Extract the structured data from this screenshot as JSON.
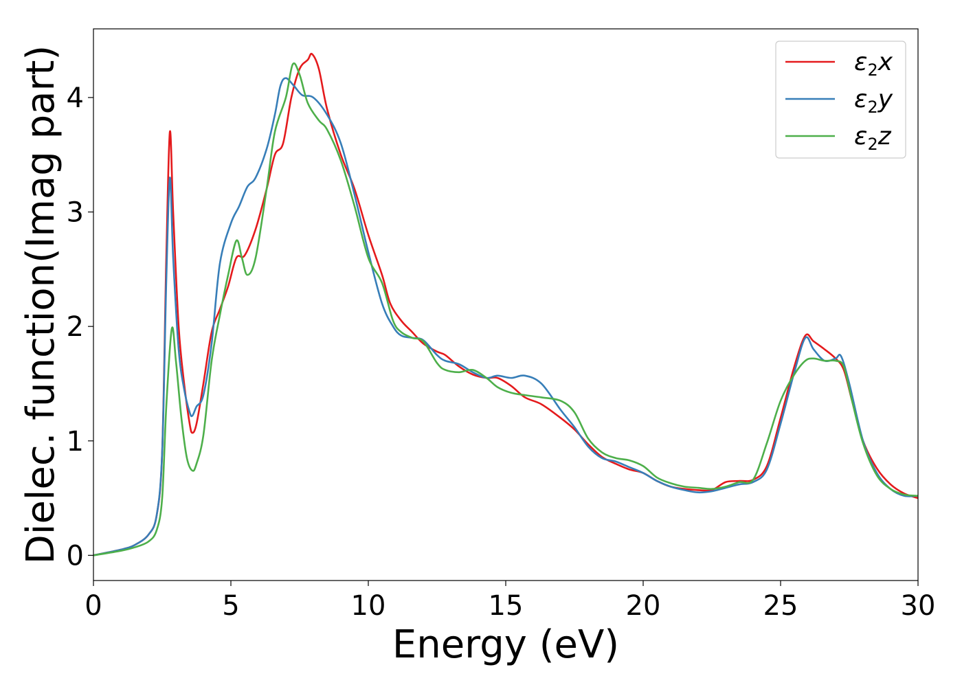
{
  "chart_data": {
    "type": "line",
    "title": "",
    "xlabel": "Energy (eV)",
    "ylabel": "Dielec. function(Imag part)",
    "xlim": [
      0,
      30
    ],
    "ylim": [
      -0.22,
      4.6
    ],
    "xticks": [
      0,
      5,
      10,
      15,
      20,
      25,
      30
    ],
    "yticks": [
      0,
      1,
      2,
      3,
      4
    ],
    "grid": false,
    "legend_position": "top-right",
    "series": [
      {
        "name": "ε2x",
        "legend_base": "ε",
        "legend_sub": "2",
        "legend_tail": "x",
        "color": "#e41a1c",
        "x": [
          0,
          1,
          1.5,
          2,
          2.3,
          2.5,
          2.65,
          2.78,
          2.9,
          3.1,
          3.3,
          3.5,
          3.6,
          3.75,
          4.0,
          4.3,
          4.6,
          4.9,
          5.2,
          5.5,
          5.9,
          6.3,
          6.6,
          6.9,
          7.2,
          7.5,
          7.8,
          7.95,
          8.2,
          8.5,
          9.0,
          9.5,
          10.0,
          10.5,
          10.8,
          11.2,
          11.6,
          12.0,
          12.5,
          12.8,
          13.3,
          13.8,
          14.3,
          14.7,
          15.2,
          15.7,
          16.3,
          17.0,
          17.5,
          18.0,
          18.5,
          19.0,
          19.5,
          20.0,
          20.5,
          21.0,
          21.5,
          22.0,
          22.5,
          23.0,
          23.5,
          24.0,
          24.5,
          25.0,
          25.5,
          25.9,
          26.2,
          26.6,
          27.0,
          27.3,
          27.6,
          28.0,
          28.5,
          29.0,
          29.5,
          30.0
        ],
        "y": [
          0,
          0.05,
          0.09,
          0.18,
          0.35,
          0.9,
          2.6,
          3.7,
          3.0,
          2.0,
          1.5,
          1.15,
          1.07,
          1.15,
          1.5,
          1.95,
          2.15,
          2.35,
          2.6,
          2.62,
          2.85,
          3.2,
          3.5,
          3.6,
          4.0,
          4.25,
          4.33,
          4.38,
          4.25,
          3.9,
          3.5,
          3.2,
          2.8,
          2.45,
          2.2,
          2.05,
          1.95,
          1.85,
          1.78,
          1.75,
          1.65,
          1.58,
          1.55,
          1.55,
          1.48,
          1.38,
          1.32,
          1.2,
          1.1,
          0.97,
          0.86,
          0.8,
          0.75,
          0.72,
          0.65,
          0.6,
          0.58,
          0.57,
          0.57,
          0.64,
          0.65,
          0.66,
          0.78,
          1.2,
          1.65,
          1.92,
          1.87,
          1.8,
          1.72,
          1.62,
          1.35,
          1.0,
          0.76,
          0.62,
          0.54,
          0.5
        ]
      },
      {
        "name": "ε2y",
        "legend_base": "ε",
        "legend_sub": "2",
        "legend_tail": "y",
        "color": "#377eb8",
        "x": [
          0,
          1,
          1.5,
          2,
          2.3,
          2.5,
          2.65,
          2.78,
          2.9,
          3.1,
          3.3,
          3.5,
          3.6,
          3.75,
          4.0,
          4.3,
          4.6,
          5.0,
          5.3,
          5.6,
          5.9,
          6.3,
          6.6,
          6.8,
          7.0,
          7.3,
          7.6,
          8.0,
          8.5,
          9.0,
          9.5,
          10.0,
          10.5,
          10.9,
          11.2,
          11.6,
          12.0,
          12.5,
          12.8,
          13.3,
          13.8,
          14.3,
          14.7,
          15.2,
          15.7,
          16.3,
          17.0,
          17.5,
          18.0,
          18.5,
          19.0,
          19.5,
          20.0,
          20.5,
          21.0,
          21.5,
          22.0,
          22.5,
          23.0,
          23.5,
          24.0,
          24.5,
          25.0,
          25.5,
          25.9,
          26.2,
          26.6,
          27.0,
          27.2,
          27.5,
          28.0,
          28.5,
          29.0,
          29.5,
          30.0
        ],
        "y": [
          0,
          0.05,
          0.09,
          0.18,
          0.35,
          0.9,
          2.4,
          3.3,
          2.6,
          1.8,
          1.45,
          1.25,
          1.22,
          1.3,
          1.4,
          1.85,
          2.55,
          2.9,
          3.05,
          3.22,
          3.3,
          3.55,
          3.85,
          4.1,
          4.17,
          4.1,
          4.02,
          4.0,
          3.85,
          3.6,
          3.15,
          2.65,
          2.2,
          2.0,
          1.92,
          1.9,
          1.88,
          1.75,
          1.7,
          1.67,
          1.6,
          1.55,
          1.57,
          1.55,
          1.57,
          1.5,
          1.27,
          1.12,
          0.95,
          0.85,
          0.82,
          0.77,
          0.72,
          0.65,
          0.6,
          0.57,
          0.55,
          0.56,
          0.59,
          0.62,
          0.64,
          0.75,
          1.15,
          1.6,
          1.9,
          1.8,
          1.7,
          1.72,
          1.74,
          1.5,
          1.0,
          0.72,
          0.58,
          0.52,
          0.52
        ]
      },
      {
        "name": "ε2z",
        "legend_base": "ε",
        "legend_sub": "2",
        "legend_tail": "z",
        "color": "#4daf4a",
        "x": [
          0,
          1,
          1.5,
          2,
          2.3,
          2.5,
          2.65,
          2.85,
          3.0,
          3.2,
          3.4,
          3.6,
          3.75,
          4.0,
          4.3,
          4.6,
          4.9,
          5.2,
          5.4,
          5.6,
          5.9,
          6.3,
          6.6,
          7.0,
          7.25,
          7.5,
          7.8,
          8.2,
          8.5,
          9.0,
          9.5,
          10.0,
          10.5,
          10.9,
          11.2,
          11.6,
          12.0,
          12.5,
          12.8,
          13.3,
          13.8,
          14.3,
          14.7,
          15.2,
          15.7,
          16.3,
          17.0,
          17.5,
          18.0,
          18.5,
          19.0,
          19.5,
          20.0,
          20.5,
          21.0,
          21.5,
          22.0,
          22.5,
          23.0,
          23.5,
          24.0,
          24.5,
          25.0,
          25.5,
          25.9,
          26.2,
          26.6,
          27.0,
          27.3,
          27.6,
          28.0,
          28.5,
          29.0,
          29.5,
          30.0
        ],
        "y": [
          0,
          0.04,
          0.07,
          0.12,
          0.22,
          0.5,
          1.3,
          1.98,
          1.7,
          1.2,
          0.85,
          0.74,
          0.8,
          1.05,
          1.7,
          2.1,
          2.45,
          2.75,
          2.6,
          2.45,
          2.6,
          3.2,
          3.7,
          4.0,
          4.29,
          4.2,
          3.95,
          3.8,
          3.72,
          3.45,
          3.05,
          2.6,
          2.38,
          2.05,
          1.95,
          1.9,
          1.87,
          1.68,
          1.62,
          1.6,
          1.62,
          1.55,
          1.47,
          1.42,
          1.4,
          1.38,
          1.35,
          1.25,
          1.02,
          0.9,
          0.85,
          0.83,
          0.78,
          0.68,
          0.63,
          0.6,
          0.59,
          0.58,
          0.6,
          0.64,
          0.66,
          0.98,
          1.35,
          1.58,
          1.7,
          1.72,
          1.7,
          1.7,
          1.65,
          1.35,
          0.98,
          0.7,
          0.58,
          0.53,
          0.52
        ]
      }
    ]
  }
}
